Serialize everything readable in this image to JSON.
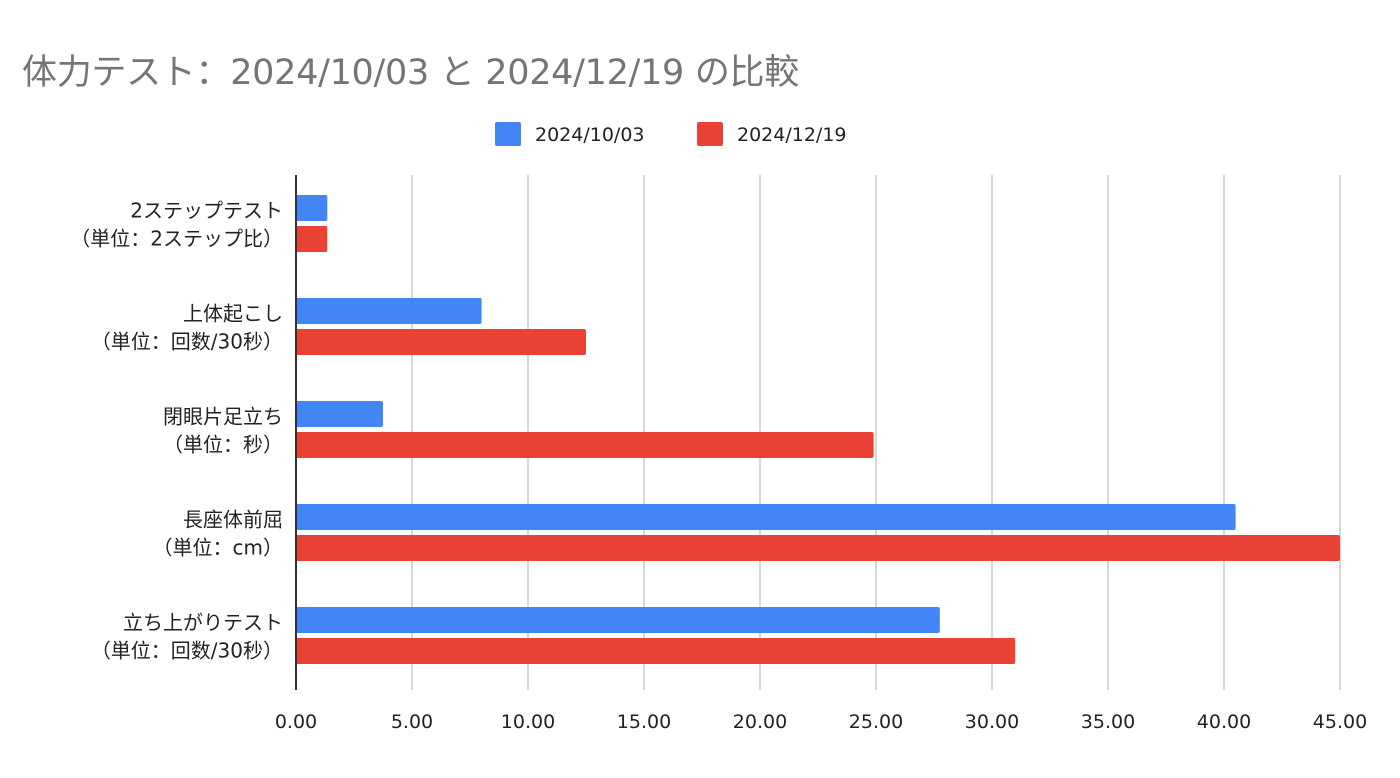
{
  "chart_data": {
    "type": "bar",
    "orientation": "horizontal",
    "title": "体力テスト：2024/10/03 と 2024/12/19 の比較",
    "xlabel": "",
    "ylabel": "",
    "categories": [
      [
        "2ステップテスト",
        "（単位：2ステップ比）"
      ],
      [
        "上体起こし",
        "（単位：回数/30秒）"
      ],
      [
        "閉眼片足立ち",
        "（単位：秒）"
      ],
      [
        "長座体前屈",
        "（単位：cm）"
      ],
      [
        "立ち上がりテスト",
        "（単位：回数/30秒）"
      ]
    ],
    "series": [
      {
        "name": "2024/10/03",
        "color": "#4285f4",
        "values": [
          1.35,
          8.0,
          3.75,
          40.5,
          27.75
        ]
      },
      {
        "name": "2024/12/19",
        "color": "#ea4335",
        "values": [
          1.35,
          12.5,
          24.9,
          45.0,
          31.0
        ]
      }
    ],
    "xlim": [
      0,
      45
    ],
    "xticks": [
      "0.00",
      "5.00",
      "10.00",
      "15.00",
      "20.00",
      "25.00",
      "30.00",
      "35.00",
      "40.00",
      "45.00"
    ],
    "tick_values": [
      0,
      5,
      10,
      15,
      20,
      25,
      30,
      35,
      40,
      45
    ],
    "grid": true,
    "legend_position": "top"
  }
}
